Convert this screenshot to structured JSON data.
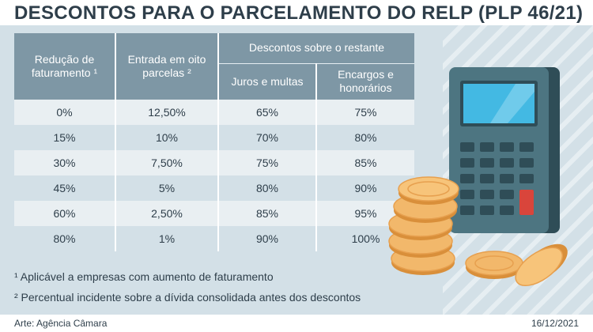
{
  "title": "DESCONTOS PARA O PARCELAMENTO DO RELP (PLP 46/21)",
  "table": {
    "headers": {
      "reducao": "Redução de faturamento ¹",
      "entrada": "Entrada em oito parcelas ²",
      "descontos_group": "Descontos sobre o restante",
      "juros": "Juros e multas",
      "encargos": "Encargos e honorários"
    },
    "rows": [
      [
        "0%",
        "12,50%",
        "65%",
        "75%"
      ],
      [
        "15%",
        "10%",
        "70%",
        "80%"
      ],
      [
        "30%",
        "7,50%",
        "75%",
        "85%"
      ],
      [
        "45%",
        "5%",
        "80%",
        "90%"
      ],
      [
        "60%",
        "2,50%",
        "85%",
        "95%"
      ],
      [
        "80%",
        "1%",
        "90%",
        "100%"
      ]
    ]
  },
  "footnotes": [
    "¹ Aplicável a empresas com aumento de faturamento",
    "² Percentual incidente sobre a dívida consolidada antes dos descontos"
  ],
  "credit": "Arte: Agência Câmara",
  "date": "16/12/2021",
  "colors": {
    "header": "#7e97a5",
    "panel": "#d3e0e7",
    "title": "#2e3e4a",
    "calculator": "#4d7581",
    "screen": "#43b9e3",
    "coin": "#f2b86b"
  },
  "illustration": {
    "calculator_icon": "calculator-icon",
    "coins_icon": "coins-icon"
  }
}
